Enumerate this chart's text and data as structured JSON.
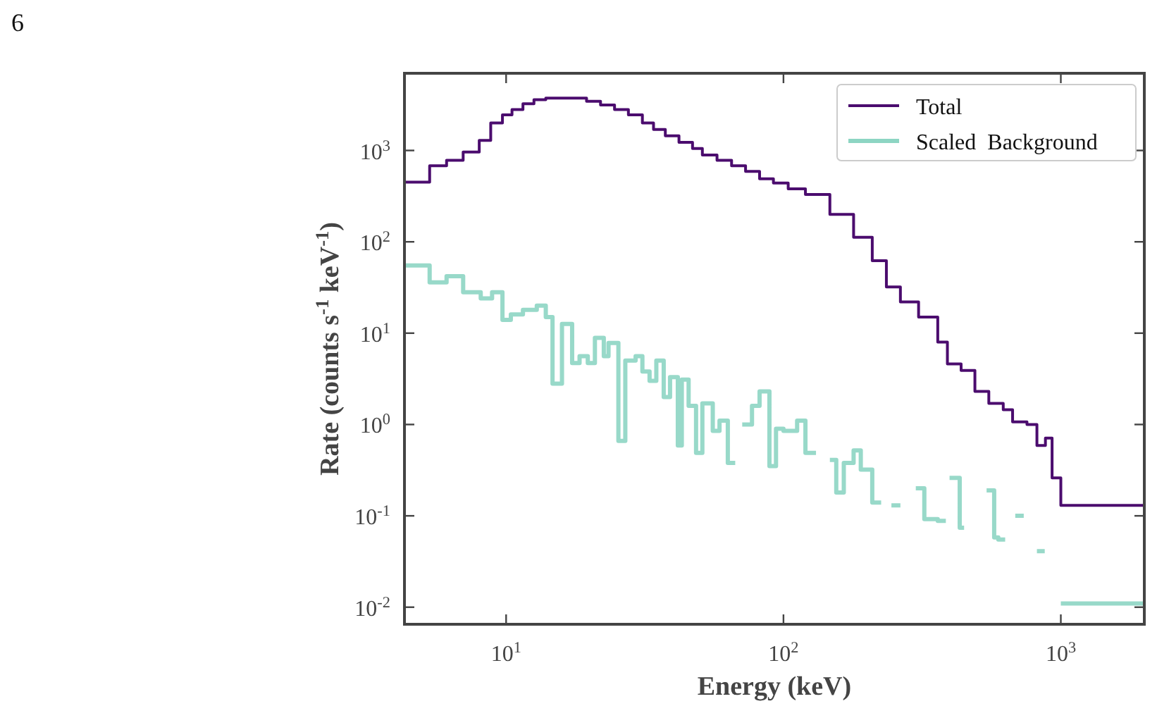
{
  "chart_data": {
    "type": "step",
    "xlabel": "Energy (keV)",
    "ylabel": "Rate (counts s$^{-1}$ keV$^{-1}$)",
    "annotations": [
      "6"
    ],
    "log": "xy",
    "legend": "top right",
    "xlim": [
      4.3,
      2000
    ],
    "ylim": [
      0.0065,
      7000
    ],
    "xticks": [
      {
        "value": 10,
        "label": "10$^{1}$"
      },
      {
        "value": 100,
        "label": "10$^{2}$"
      },
      {
        "value": 1000,
        "label": "10$^{3}$"
      }
    ],
    "yticks": [
      {
        "value": 0.01,
        "label": "10$^{-2}$"
      },
      {
        "value": 0.1,
        "label": "10$^{-1}$"
      },
      {
        "value": 1,
        "label": "10$^{0}$"
      },
      {
        "value": 10,
        "label": "10$^{1}$"
      },
      {
        "value": 100,
        "label": "10$^{2}$"
      },
      {
        "value": 1000,
        "label": "10$^{3}$"
      }
    ],
    "series": [
      {
        "name": "Total",
        "color": "#4b0c6e",
        "x": [
          4.3,
          5.3,
          6.1,
          7.0,
          8.0,
          8.8,
          9.7,
          10.5,
          11.5,
          12.6,
          13.9,
          19.5,
          21.9,
          24.6,
          27.6,
          31,
          34,
          37.5,
          42,
          47,
          51,
          57.6,
          65,
          73,
          82,
          92,
          104,
          120,
          147,
          179,
          209,
          235,
          264,
          307,
          360,
          390,
          437,
          490,
          550,
          620,
          670,
          755,
          820,
          880,
          930,
          1000,
          2000
        ],
        "values": [
          450,
          680,
          780,
          960,
          1290,
          2000,
          2450,
          2800,
          3250,
          3600,
          3750,
          3450,
          3150,
          2800,
          2450,
          2000,
          1700,
          1450,
          1230,
          1050,
          890,
          780,
          680,
          590,
          490,
          440,
          380,
          330,
          200,
          112,
          62,
          32,
          22,
          15,
          8,
          4.6,
          3.9,
          2.3,
          1.7,
          1.45,
          1.07,
          1.0,
          0.59,
          0.71,
          0.26,
          0.13,
          0.13
        ]
      },
      {
        "name": "Scaled  Background",
        "color": "#8dd5c3",
        "x": [
          4.3,
          5.3,
          6.1,
          7.0,
          8.1,
          8.9,
          9.7,
          10.4,
          11.5,
          12.9,
          13.9,
          14.7,
          15.9,
          17.3,
          18.4,
          19.7,
          20.9,
          22.5,
          23.4,
          25.4,
          26.9,
          29.3,
          31,
          32.9,
          34.8,
          37,
          39,
          41.6,
          43,
          45.5,
          48.4,
          51,
          55.6,
          58.8,
          63,
          67,
          71,
          77,
          82,
          89,
          94,
          100,
          112,
          120,
          131,
          147,
          155,
          165,
          179,
          190,
          209,
          225,
          245,
          264,
          300,
          322,
          360,
          385,
          397,
          432,
          448,
          540,
          575,
          595,
          630,
          685,
          735,
          820,
          875,
          1000,
          2000
        ],
        "values": [
          55,
          36,
          42,
          28,
          24,
          28,
          14,
          16,
          18,
          20,
          15,
          2.8,
          12.6,
          4.7,
          5.6,
          4.7,
          8.9,
          5.6,
          7.8,
          0.66,
          5.0,
          5.6,
          3.8,
          3.0,
          5.0,
          2.0,
          3.3,
          0.59,
          3.1,
          1.6,
          0.49,
          1.7,
          0.85,
          1.1,
          0.38,
          null,
          1.0,
          1.6,
          2.3,
          0.35,
          0.9,
          0.85,
          1.1,
          0.49,
          null,
          0.41,
          0.18,
          0.38,
          0.52,
          0.32,
          0.14,
          null,
          0.13,
          null,
          0.2,
          0.092,
          0.088,
          null,
          0.26,
          0.074,
          null,
          0.19,
          0.058,
          0.055,
          null,
          0.1,
          null,
          0.041,
          null,
          0.011,
          0.011
        ]
      }
    ]
  }
}
